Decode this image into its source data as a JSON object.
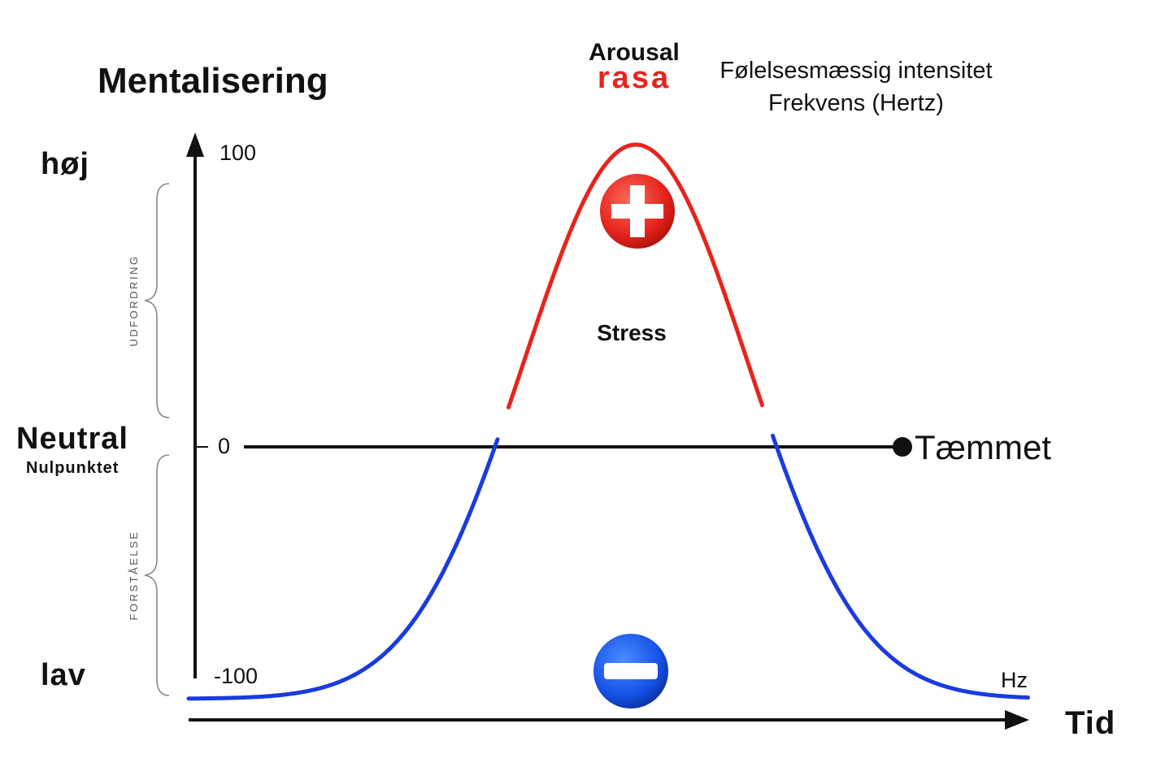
{
  "title": "Mentalisering",
  "levels": {
    "high": "høj",
    "neutral": "Neutral",
    "neutral_sub": "Nulpunktet",
    "low": "lav"
  },
  "ticks": {
    "max": "100",
    "zero": "0",
    "min": "-100"
  },
  "side_labels": {
    "upper": "UDFORDRING",
    "lower": "FORSTÅELSE"
  },
  "arousal": {
    "label": "Arousal",
    "word": "rasa"
  },
  "intensity": {
    "line1": "Følelsesmæssig intensitet",
    "line2": "Frekvens (Hertz)"
  },
  "stress_label": "Stress",
  "tamed_label": "Tæmmet",
  "x_axis_label": "Tid",
  "unit_label": "Hz",
  "icons": {
    "plus": "plus-circle-icon",
    "minus": "minus-circle-icon"
  },
  "colors": {
    "positive": "#e8231d",
    "negative": "#1a3be0",
    "axis": "#111111"
  },
  "chart_data": {
    "type": "line",
    "ylim": [
      -100,
      100
    ],
    "curve": "bell",
    "peak_value": 100,
    "baseline_value": -100,
    "threshold_value": 0,
    "above_threshold_color": "#e8231d",
    "below_threshold_color": "#1a3be0"
  }
}
